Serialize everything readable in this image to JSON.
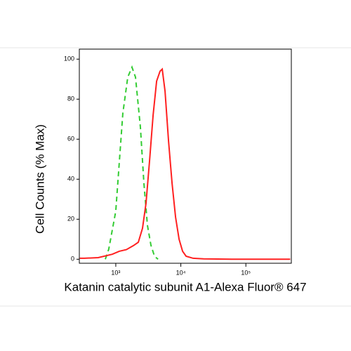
{
  "chart_data": {
    "type": "line",
    "x_label": "Katanin catalytic subunit A1-Alexa Fluor® 647",
    "y_label": "Cell Counts (% Max)",
    "xscale": "log",
    "xlim": [
      275,
      500000
    ],
    "xticks": [
      {
        "value": 1000,
        "label": "10³"
      },
      {
        "value": 10000,
        "label": "10⁴"
      },
      {
        "value": 100000,
        "label": "10⁵"
      }
    ],
    "ylim": [
      -2,
      105
    ],
    "yticks": [
      0,
      20,
      40,
      60,
      80,
      100
    ],
    "series": [
      {
        "color": "#33cc33",
        "dash": true,
        "x": [
          689,
          780,
          1000,
          1283,
          1527,
          1773,
          2010,
          2389,
          2705,
          3064,
          3472,
          3937,
          4457
        ],
        "values": [
          0,
          5,
          24,
          73,
          91,
          96,
          91,
          66,
          38,
          17,
          7,
          1.5,
          0
        ]
      },
      {
        "color": "#ff2020",
        "dash": false,
        "x": [
          280,
          327,
          537,
          883,
          1132,
          1452,
          1862,
          2218,
          2576,
          2919,
          3304,
          3743,
          4238,
          4797,
          5173,
          5716,
          6475,
          7330,
          8300,
          9398,
          10640,
          12050,
          15460,
          22430,
          60810,
          480000
        ],
        "values": [
          0.5,
          0.5,
          0.8,
          2.5,
          4,
          4.8,
          6.8,
          8.5,
          15.5,
          28,
          49,
          72,
          89,
          94,
          95,
          84,
          59,
          38,
          21,
          10,
          4,
          1.5,
          0.5,
          0.2,
          0,
          0
        ]
      }
    ]
  }
}
